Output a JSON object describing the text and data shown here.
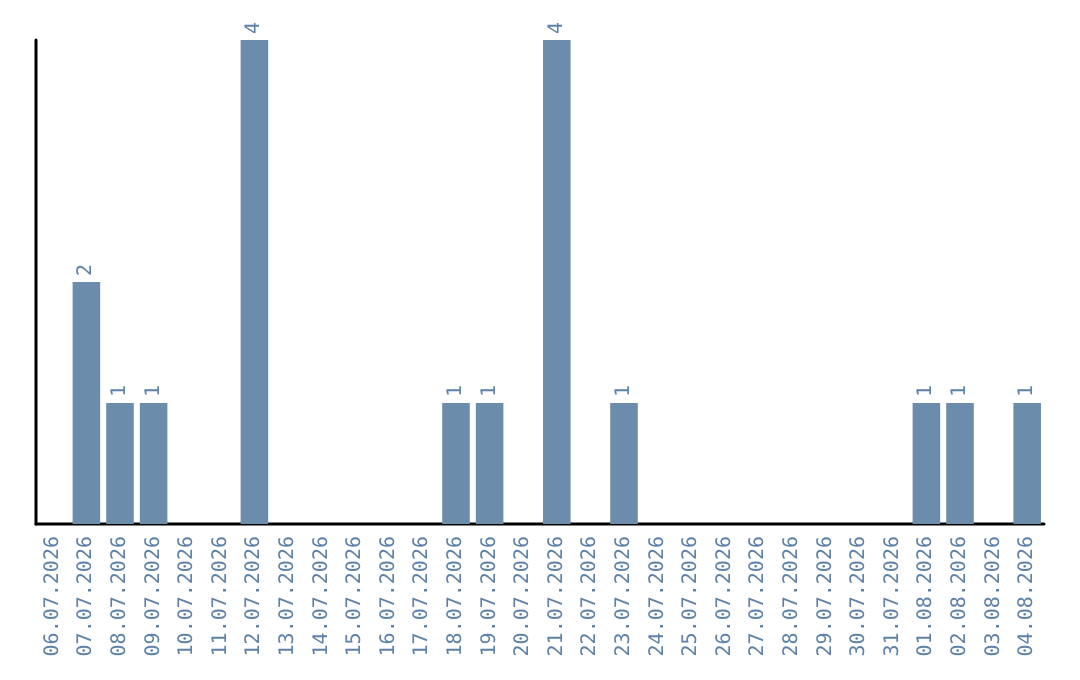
{
  "chart_data": {
    "type": "bar",
    "categories": [
      "06.07.2026",
      "07.07.2026",
      "08.07.2026",
      "09.07.2026",
      "10.07.2026",
      "11.07.2026",
      "12.07.2026",
      "13.07.2026",
      "14.07.2026",
      "15.07.2026",
      "16.07.2026",
      "17.07.2026",
      "18.07.2026",
      "19.07.2026",
      "20.07.2026",
      "21.07.2026",
      "22.07.2026",
      "23.07.2026",
      "24.07.2026",
      "25.07.2026",
      "26.07.2026",
      "27.07.2026",
      "28.07.2026",
      "29.07.2026",
      "30.07.2026",
      "31.07.2026",
      "01.08.2026",
      "02.08.2026",
      "03.08.2026",
      "04.08.2026"
    ],
    "values": [
      null,
      2,
      1,
      1,
      null,
      null,
      4,
      null,
      null,
      null,
      null,
      null,
      1,
      1,
      null,
      4,
      null,
      1,
      null,
      null,
      null,
      null,
      null,
      null,
      null,
      null,
      1,
      1,
      null,
      1
    ],
    "color": "#6b8caa",
    "data_labels": true,
    "tick_labels": "x",
    "grid": false
  }
}
